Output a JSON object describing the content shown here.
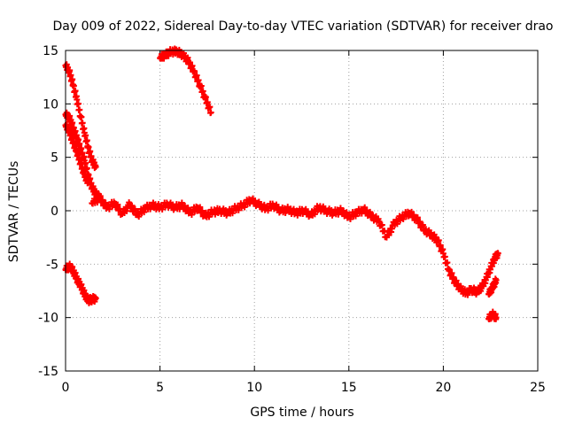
{
  "chart_data": {
    "type": "scatter",
    "title": "Day 009 of 2022, Sidereal Day-to-day VTEC variation (SDTVAR) for receiver drao",
    "xlabel": "GPS time / hours",
    "ylabel": "SDTVAR / TECUs",
    "xlim": [
      0,
      25
    ],
    "ylim": [
      -15,
      15
    ],
    "xticks": [
      0,
      5,
      10,
      15,
      20,
      25
    ],
    "yticks": [
      -15,
      -10,
      -5,
      0,
      5,
      10,
      15
    ],
    "xtick_labels": [
      "0",
      "5",
      "10",
      "15",
      "20",
      "25"
    ],
    "ytick_labels": [
      "-15",
      "-10",
      "-5",
      "0",
      "5",
      "10",
      "15"
    ],
    "grid": true,
    "marker": "+",
    "color": "#ff0000",
    "series": [
      {
        "name": "segment-high-early",
        "points": [
          [
            0.0,
            13.6
          ],
          [
            0.2,
            13.0
          ],
          [
            0.4,
            11.8
          ],
          [
            0.6,
            10.4
          ],
          [
            0.8,
            8.8
          ],
          [
            1.0,
            7.3
          ],
          [
            1.2,
            5.9
          ],
          [
            1.4,
            4.7
          ],
          [
            1.6,
            4.1
          ]
        ]
      },
      {
        "name": "segment-mid-early",
        "points": [
          [
            0.0,
            9.0
          ],
          [
            0.2,
            8.7
          ],
          [
            0.4,
            7.8
          ],
          [
            0.6,
            6.8
          ],
          [
            0.8,
            5.8
          ],
          [
            1.0,
            4.7
          ],
          [
            1.2,
            3.3
          ],
          [
            1.4,
            2.2
          ],
          [
            1.6,
            1.6
          ],
          [
            1.8,
            1.2
          ]
        ]
      },
      {
        "name": "segment-second-early",
        "points": [
          [
            0.0,
            8.0
          ],
          [
            0.2,
            7.4
          ],
          [
            0.4,
            6.4
          ],
          [
            0.6,
            5.5
          ],
          [
            0.8,
            4.4
          ],
          [
            1.0,
            3.4
          ],
          [
            1.2,
            2.6
          ]
        ]
      },
      {
        "name": "segment-afternoon-arc",
        "points": [
          [
            5.0,
            14.3
          ],
          [
            5.3,
            14.6
          ],
          [
            5.6,
            14.9
          ],
          [
            5.9,
            14.9
          ],
          [
            6.2,
            14.6
          ],
          [
            6.5,
            14.0
          ],
          [
            6.8,
            13.0
          ],
          [
            7.1,
            11.8
          ],
          [
            7.4,
            10.5
          ],
          [
            7.7,
            9.2
          ]
        ]
      },
      {
        "name": "segment-early-negative",
        "points": [
          [
            0.0,
            -5.5
          ],
          [
            0.2,
            -5.2
          ],
          [
            0.4,
            -5.6
          ],
          [
            0.6,
            -6.4
          ],
          [
            0.8,
            -7.0
          ],
          [
            1.0,
            -7.8
          ],
          [
            1.2,
            -8.4
          ],
          [
            1.4,
            -8.3
          ],
          [
            1.6,
            -8.2
          ]
        ]
      },
      {
        "name": "segment-main-trace",
        "points": [
          [
            1.4,
            0.7
          ],
          [
            1.8,
            1.2
          ],
          [
            2.2,
            0.3
          ],
          [
            2.6,
            0.7
          ],
          [
            3.0,
            -0.3
          ],
          [
            3.4,
            0.6
          ],
          [
            3.8,
            -0.4
          ],
          [
            4.2,
            0.2
          ],
          [
            4.6,
            0.5
          ],
          [
            5.0,
            0.3
          ],
          [
            5.4,
            0.6
          ],
          [
            5.8,
            0.3
          ],
          [
            6.2,
            0.5
          ],
          [
            6.6,
            -0.2
          ],
          [
            7.0,
            0.3
          ],
          [
            7.4,
            -0.5
          ],
          [
            7.8,
            -0.1
          ],
          [
            8.2,
            0.0
          ],
          [
            8.6,
            -0.2
          ],
          [
            9.0,
            0.2
          ],
          [
            9.4,
            0.5
          ],
          [
            9.8,
            1.0
          ],
          [
            10.2,
            0.6
          ],
          [
            10.6,
            0.2
          ],
          [
            11.0,
            0.5
          ],
          [
            11.4,
            0.0
          ],
          [
            11.8,
            0.1
          ],
          [
            12.2,
            -0.2
          ],
          [
            12.6,
            0.0
          ],
          [
            13.0,
            -0.4
          ],
          [
            13.4,
            0.3
          ],
          [
            13.8,
            0.0
          ],
          [
            14.2,
            -0.2
          ],
          [
            14.6,
            0.0
          ],
          [
            15.0,
            -0.6
          ],
          [
            15.4,
            -0.2
          ],
          [
            15.8,
            0.1
          ],
          [
            16.2,
            -0.5
          ],
          [
            16.6,
            -1.0
          ],
          [
            17.0,
            -2.5
          ],
          [
            17.4,
            -1.2
          ],
          [
            17.8,
            -0.6
          ],
          [
            18.2,
            -0.2
          ],
          [
            18.6,
            -0.8
          ],
          [
            19.0,
            -1.8
          ],
          [
            19.4,
            -2.3
          ],
          [
            19.7,
            -2.8
          ],
          [
            20.0,
            -4.0
          ],
          [
            20.3,
            -5.6
          ],
          [
            20.6,
            -6.6
          ],
          [
            20.9,
            -7.3
          ],
          [
            21.2,
            -7.7
          ],
          [
            21.5,
            -7.4
          ],
          [
            21.8,
            -7.6
          ],
          [
            22.1,
            -7.0
          ],
          [
            22.4,
            -5.8
          ],
          [
            22.7,
            -4.5
          ],
          [
            22.9,
            -4.0
          ]
        ]
      },
      {
        "name": "segment-late-a",
        "points": [
          [
            22.4,
            -7.8
          ],
          [
            22.6,
            -7.2
          ],
          [
            22.8,
            -6.5
          ]
        ]
      },
      {
        "name": "segment-late-b",
        "points": [
          [
            22.4,
            -10.1
          ],
          [
            22.6,
            -9.7
          ],
          [
            22.8,
            -10.0
          ]
        ]
      }
    ]
  }
}
